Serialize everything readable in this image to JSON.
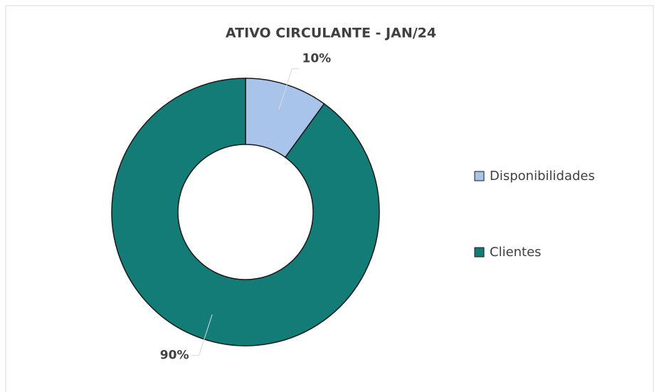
{
  "chart_data": {
    "type": "donut",
    "title": "ATIVO CIRCULANTE  - JAN/24",
    "categories": [
      "Disponibilidades",
      "Clientes"
    ],
    "values": [
      10,
      90
    ],
    "value_labels": [
      "10%",
      "90%"
    ],
    "colors": [
      "#a9c4eb",
      "#137c76"
    ],
    "legend": "right"
  }
}
